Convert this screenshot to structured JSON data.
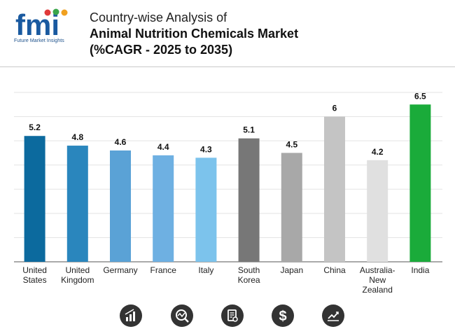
{
  "header": {
    "logo_text": "fmi",
    "logo_subtitle": "Future Market Insights",
    "title_line1": "Country-wise Analysis of",
    "title_line2": "Animal Nutrition Chemicals Market",
    "title_line3": "(%CAGR - 2025 to 2035)"
  },
  "chart_data": {
    "type": "bar",
    "title": "Country-wise Analysis of Animal Nutrition Chemicals Market (%CAGR - 2025 to 2035)",
    "xlabel": "",
    "ylabel": "",
    "ylim": [
      0,
      7
    ],
    "grid": true,
    "categories": [
      [
        "United",
        "States"
      ],
      [
        "United",
        "Kingdom"
      ],
      [
        "Germany"
      ],
      [
        "France"
      ],
      [
        "Italy"
      ],
      [
        "South",
        "Korea"
      ],
      [
        "Japan"
      ],
      [
        "China"
      ],
      [
        "Australia-",
        "New",
        "Zealand"
      ],
      [
        "India"
      ]
    ],
    "values": [
      5.2,
      4.8,
      4.6,
      4.4,
      4.3,
      5.1,
      4.5,
      6,
      4.2,
      6.5
    ],
    "value_labels": [
      "5.2",
      "4.8",
      "4.6",
      "4.4",
      "4.3",
      "5.1",
      "4.5",
      "6",
      "4.2",
      "6.5"
    ],
    "colors": [
      "#0c6a9e",
      "#2a86bd",
      "#5aa2d6",
      "#6eb0e2",
      "#7cc3ec",
      "#777777",
      "#a8a8a8",
      "#c4c4c4",
      "#e0e0e0",
      "#1aab3a"
    ]
  },
  "footer_icons": [
    "bar-chart-icon",
    "magnifier-chart-icon",
    "document-search-icon",
    "dollar-icon",
    "trend-chart-icon"
  ]
}
